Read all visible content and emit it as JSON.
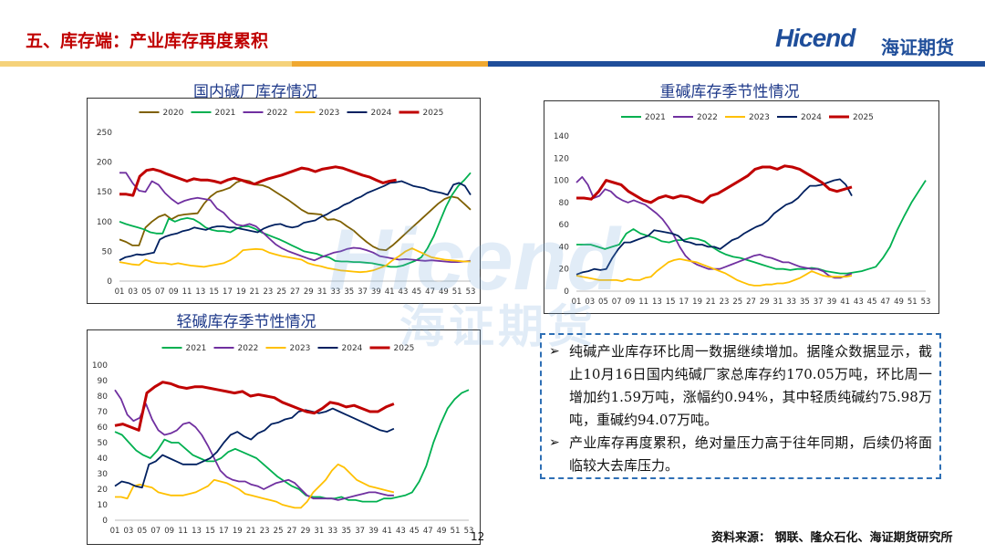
{
  "header": {
    "title": "五、库存端：产业库存再度累积",
    "logo_en": "Hicend",
    "logo_cn": "海证期货"
  },
  "watermark": {
    "en": "Hicend",
    "cn": "海证期货"
  },
  "colors": {
    "2020": "#7f6000",
    "2021": "#00b050",
    "2022": "#7030a0",
    "2023": "#ffc000",
    "2024": "#002060",
    "2025": "#c00000"
  },
  "chart_data": [
    {
      "type": "line",
      "title": "国内碱厂库存情况",
      "xlabel": "",
      "ylabel": "",
      "ylim": [
        0,
        250
      ],
      "yticks": [
        "0",
        "50",
        "100",
        "150",
        "200",
        "250"
      ],
      "x_tick_labels": [
        "01",
        "03",
        "05",
        "07",
        "09",
        "11",
        "13",
        "15",
        "17",
        "19",
        "21",
        "23",
        "25",
        "27",
        "29",
        "31",
        "33",
        "35",
        "37",
        "39",
        "41",
        "43",
        "45",
        "47",
        "49",
        "51",
        "53"
      ],
      "legend": "top",
      "series": [
        {
          "name": "2020",
          "values": [
            70,
            66,
            60,
            60,
            90,
            100,
            108,
            112,
            104,
            110,
            112,
            113,
            114,
            130,
            142,
            150,
            153,
            157,
            166,
            170,
            168,
            162,
            161,
            157,
            150,
            143,
            136,
            128,
            120,
            114,
            113,
            112,
            103,
            104,
            100,
            92,
            85,
            75,
            66,
            58,
            53,
            52,
            60,
            70,
            80,
            90,
            100,
            110,
            120,
            130,
            138,
            142,
            140,
            130,
            120
          ]
        },
        {
          "name": "2021",
          "values": [
            100,
            96,
            93,
            90,
            87,
            82,
            80,
            80,
            105,
            100,
            104,
            106,
            104,
            98,
            90,
            86,
            84,
            84,
            82,
            88,
            92,
            92,
            88,
            82,
            78,
            74,
            70,
            65,
            60,
            55,
            50,
            48,
            46,
            42,
            40,
            34,
            33,
            33,
            32,
            32,
            31,
            30,
            28,
            26,
            24,
            24,
            26,
            30,
            34,
            40,
            55,
            75,
            100,
            125,
            145,
            160,
            170,
            182
          ]
        },
        {
          "name": "2022",
          "values": [
            182,
            182,
            165,
            152,
            150,
            168,
            162,
            148,
            138,
            130,
            135,
            138,
            140,
            138,
            136,
            122,
            115,
            103,
            95,
            93,
            96,
            92,
            82,
            72,
            62,
            55,
            50,
            46,
            42,
            38,
            35,
            40,
            44,
            48,
            50,
            54,
            56,
            55,
            52,
            48,
            42,
            40,
            38,
            36,
            37,
            36,
            35,
            34,
            35,
            34,
            33,
            32,
            32,
            33,
            34
          ]
        },
        {
          "name": "2023",
          "values": [
            32,
            30,
            28,
            27,
            36,
            32,
            30,
            30,
            28,
            30,
            28,
            26,
            25,
            24,
            26,
            28,
            30,
            35,
            42,
            52,
            53,
            54,
            53,
            48,
            45,
            42,
            40,
            38,
            36,
            30,
            27,
            25,
            22,
            20,
            18,
            17,
            16,
            15,
            16,
            18,
            22,
            26,
            35,
            42,
            50,
            55,
            50,
            45,
            40,
            38,
            36,
            35,
            34,
            33,
            33
          ]
        },
        {
          "name": "2024",
          "values": [
            35,
            40,
            42,
            45,
            44,
            46,
            48,
            70,
            75,
            78,
            80,
            84,
            86,
            90,
            88,
            86,
            90,
            92,
            92,
            90,
            90,
            88,
            86,
            84,
            82,
            88,
            92,
            95,
            96,
            92,
            90,
            92,
            98,
            100,
            102,
            108,
            112,
            118,
            122,
            128,
            132,
            138,
            142,
            148,
            152,
            156,
            160,
            165,
            166,
            168,
            164,
            160,
            158,
            156,
            152,
            150,
            148,
            145,
            162,
            165,
            160,
            145
          ]
        },
        {
          "name": "2025",
          "values": [
            146,
            146,
            144,
            176,
            186,
            188,
            185,
            180,
            176,
            172,
            168,
            172,
            170,
            170,
            168,
            165,
            170,
            173,
            170,
            166,
            163,
            168,
            172,
            175,
            178,
            182,
            186,
            190,
            188,
            184,
            188,
            190,
            192,
            190,
            186,
            182,
            178,
            175,
            170,
            165,
            168,
            170
          ]
        }
      ]
    },
    {
      "type": "line",
      "title": "重碱库存季节性情况",
      "xlabel": "",
      "ylabel": "",
      "ylim": [
        0,
        140
      ],
      "yticks": [
        "0",
        "20",
        "40",
        "60",
        "80",
        "100",
        "120",
        "140"
      ],
      "x_tick_labels": [
        "01",
        "03",
        "05",
        "07",
        "09",
        "11",
        "13",
        "15",
        "17",
        "19",
        "21",
        "23",
        "25",
        "27",
        "29",
        "31",
        "33",
        "35",
        "37",
        "39",
        "41",
        "43",
        "45",
        "47",
        "49",
        "51",
        "53"
      ],
      "legend": "top",
      "series": [
        {
          "name": "2021",
          "values": [
            42,
            42,
            42,
            40,
            38,
            40,
            42,
            52,
            56,
            52,
            50,
            48,
            45,
            44,
            46,
            46,
            48,
            47,
            45,
            40,
            36,
            33,
            31,
            30,
            28,
            26,
            24,
            22,
            20,
            20,
            19,
            20,
            20,
            21,
            20,
            18,
            17,
            16,
            16,
            17,
            18,
            20,
            22,
            30,
            40,
            55,
            68,
            80,
            90,
            100
          ]
        },
        {
          "name": "2022",
          "values": [
            98,
            103,
            96,
            84,
            86,
            92,
            90,
            85,
            82,
            80,
            82,
            80,
            78,
            74,
            70,
            65,
            58,
            50,
            40,
            32,
            27,
            24,
            22,
            20,
            20,
            20,
            22,
            24,
            26,
            28,
            30,
            32,
            33,
            31,
            30,
            28,
            26,
            26,
            24,
            22,
            21,
            20,
            20,
            18,
            14,
            12,
            12,
            14,
            16
          ]
        },
        {
          "name": "2023",
          "values": [
            14,
            13,
            12,
            11,
            10,
            10,
            10,
            10,
            9,
            11,
            10,
            10,
            12,
            13,
            18,
            22,
            26,
            28,
            29,
            28,
            27,
            26,
            24,
            22,
            20,
            18,
            16,
            13,
            10,
            8,
            6,
            5,
            5,
            6,
            6,
            7,
            7,
            8,
            10,
            12,
            15,
            18,
            16,
            14,
            13,
            13,
            13,
            13,
            14
          ]
        },
        {
          "name": "2024",
          "values": [
            15,
            17,
            18,
            20,
            19,
            20,
            30,
            38,
            44,
            44,
            46,
            48,
            50,
            55,
            54,
            53,
            52,
            50,
            45,
            44,
            42,
            42,
            40,
            40,
            38,
            42,
            46,
            48,
            52,
            55,
            58,
            60,
            64,
            70,
            74,
            78,
            80,
            84,
            90,
            95,
            95,
            96,
            98,
            100,
            101,
            96,
            86
          ]
        },
        {
          "name": "2025",
          "values": [
            84,
            84,
            83,
            90,
            100,
            98,
            96,
            90,
            86,
            82,
            80,
            84,
            86,
            84,
            86,
            85,
            82,
            80,
            86,
            88,
            92,
            96,
            100,
            104,
            110,
            112,
            112,
            110,
            113,
            112,
            110,
            106,
            102,
            98,
            92,
            90,
            92,
            94
          ]
        }
      ]
    },
    {
      "type": "line",
      "title": "轻碱库存季节性情况",
      "xlabel": "",
      "ylabel": "",
      "ylim": [
        0,
        100
      ],
      "yticks": [
        "0",
        "10",
        "20",
        "30",
        "40",
        "50",
        "60",
        "70",
        "80",
        "90",
        "100"
      ],
      "x_tick_labels": [
        "01",
        "03",
        "05",
        "07",
        "09",
        "11",
        "13",
        "15",
        "17",
        "19",
        "21",
        "23",
        "25",
        "27",
        "29",
        "31",
        "33",
        "35",
        "37",
        "39",
        "41",
        "43",
        "45",
        "47",
        "49",
        "51",
        "53"
      ],
      "legend": "top",
      "series": [
        {
          "name": "2021",
          "values": [
            57,
            55,
            50,
            45,
            42,
            40,
            45,
            52,
            50,
            50,
            46,
            42,
            40,
            38,
            38,
            40,
            44,
            46,
            44,
            42,
            40,
            36,
            32,
            28,
            25,
            22,
            20,
            16,
            15,
            15,
            14,
            14,
            15,
            13,
            13,
            12,
            12,
            12,
            14,
            14,
            15,
            16,
            18,
            25,
            35,
            50,
            62,
            72,
            78,
            82,
            84
          ]
        },
        {
          "name": "2022",
          "values": [
            84,
            78,
            68,
            64,
            66,
            75,
            65,
            58,
            55,
            56,
            58,
            62,
            63,
            60,
            55,
            48,
            40,
            32,
            28,
            26,
            25,
            25,
            23,
            22,
            20,
            22,
            24,
            25,
            26,
            24,
            20,
            16,
            14,
            14,
            14,
            14,
            13,
            14,
            15,
            16,
            17,
            18,
            18,
            17,
            16,
            16
          ]
        },
        {
          "name": "2023",
          "values": [
            15,
            15,
            14,
            22,
            23,
            22,
            21,
            18,
            17,
            16,
            16,
            16,
            17,
            18,
            20,
            22,
            26,
            25,
            24,
            22,
            20,
            17,
            16,
            15,
            14,
            13,
            12,
            10,
            9,
            8,
            8,
            12,
            18,
            22,
            26,
            32,
            36,
            34,
            30,
            26,
            24,
            22,
            21,
            20,
            19,
            18
          ]
        },
        {
          "name": "2024",
          "values": [
            22,
            25,
            24,
            22,
            21,
            36,
            38,
            42,
            40,
            38,
            36,
            36,
            36,
            38,
            40,
            44,
            50,
            55,
            57,
            54,
            52,
            56,
            58,
            62,
            63,
            65,
            66,
            70,
            71,
            70,
            69,
            70,
            72,
            70,
            68,
            66,
            64,
            62,
            60,
            58,
            57,
            59
          ]
        },
        {
          "name": "2025",
          "values": [
            61,
            62,
            60,
            58,
            82,
            86,
            89,
            88,
            86,
            85,
            86,
            86,
            85,
            84,
            83,
            82,
            83,
            80,
            81,
            80,
            79,
            76,
            74,
            72,
            70,
            69,
            72,
            76,
            75,
            73,
            74,
            72,
            70,
            70,
            73,
            75
          ]
        }
      ]
    }
  ],
  "notes": [
    "纯碱产业库存环比周一数据继续增加。据隆众数据显示，截止10月16日国内纯碱厂家总库存约170.05万吨，环比周一增加约1.59万吨，涨幅约0.94%，其中轻质纯碱约75.98万吨，重碱约94.07万吨。",
    "产业库存再度累积，绝对量压力高于往年同期，后续仍将面临较大去库压力。"
  ],
  "source": "资料来源：  钢联、隆众石化、海证期货研究所",
  "page_number": "12"
}
